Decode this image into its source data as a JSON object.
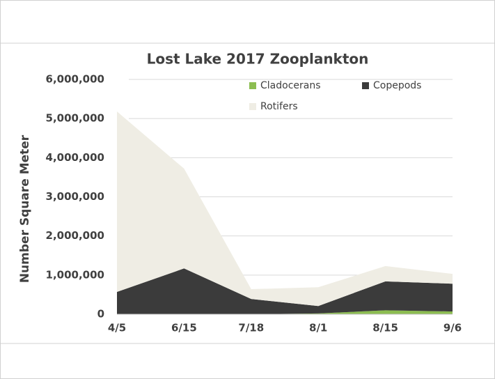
{
  "chart_data": {
    "type": "stacked_area",
    "title": "Lost Lake 2017 Zooplankton",
    "y_label": "Number Square Meter",
    "categories": [
      "4/5",
      "6/15",
      "7/18",
      "8/1",
      "8/15",
      "9/6"
    ],
    "series": [
      {
        "name": "Cladocerans",
        "color": "#8cbd51",
        "values": [
          0,
          0,
          0,
          20000,
          100000,
          70000
        ]
      },
      {
        "name": "Copepods",
        "color": "#3b3b3b",
        "values": [
          570000,
          1170000,
          390000,
          190000,
          740000,
          710000
        ]
      },
      {
        "name": "Rotifers",
        "color": "#efede4",
        "values": [
          4610000,
          2550000,
          250000,
          480000,
          390000,
          250000
        ]
      }
    ],
    "ylim": [
      0,
      6000000
    ],
    "yticks": [
      {
        "value": 0,
        "label": "0"
      },
      {
        "value": 1000000,
        "label": "1,000,000"
      },
      {
        "value": 2000000,
        "label": "2,000,000"
      },
      {
        "value": 3000000,
        "label": "3,000,000"
      },
      {
        "value": 4000000,
        "label": "4,000,000"
      },
      {
        "value": 5000000,
        "label": "5,000,000"
      },
      {
        "value": 6000000,
        "label": "6,000,000"
      }
    ],
    "grid": true
  }
}
